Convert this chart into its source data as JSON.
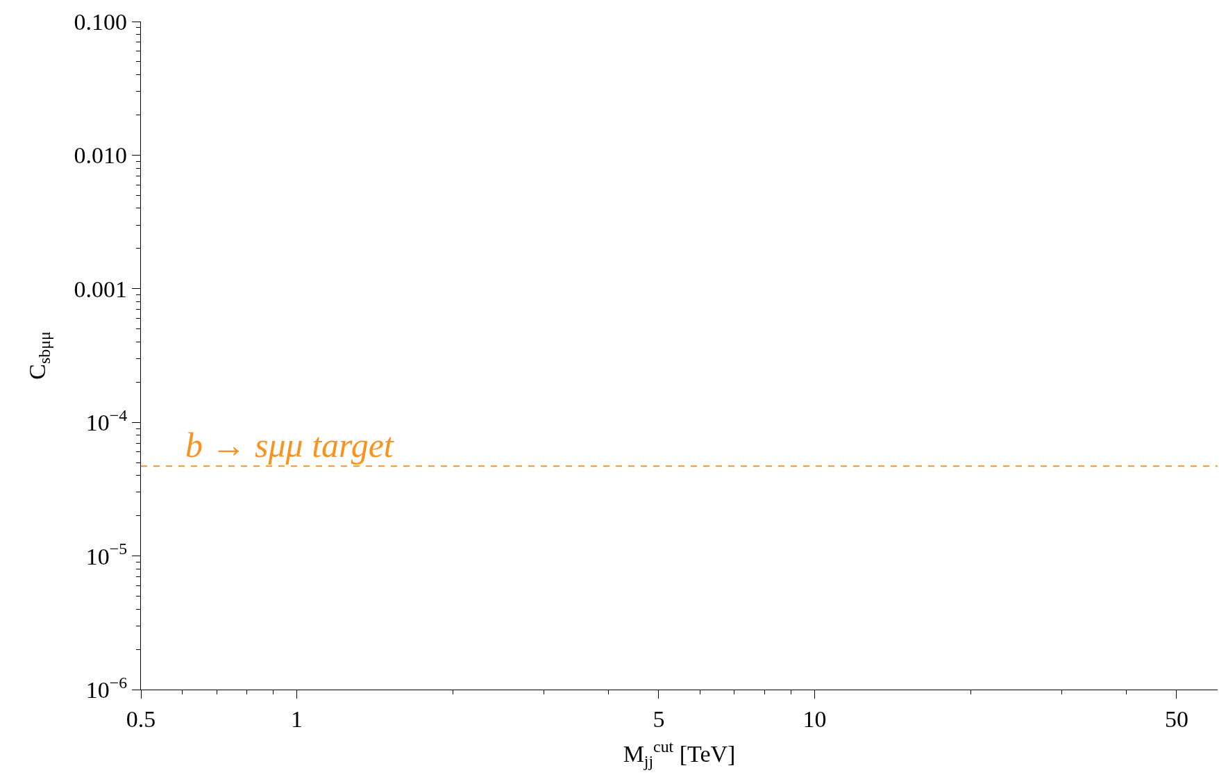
{
  "chart_data": {
    "type": "line",
    "xlabel": "M$_{jj}$$^{cut}$ [TeV]",
    "ylabel": "C$_{sbμμ}$",
    "log": "xy",
    "xlim": [
      0.5,
      60
    ],
    "ylim": [
      1e-06,
      0.1
    ],
    "xticks": [
      0.5,
      {
        "value": 0.6,
        "label": null
      },
      {
        "value": 0.7,
        "label": null
      },
      {
        "value": 0.8,
        "label": null
      },
      {
        "value": 0.9,
        "label": null
      },
      1,
      {
        "value": 2,
        "label": null
      },
      {
        "value": 3,
        "label": null
      },
      {
        "value": 4,
        "label": null
      },
      5,
      {
        "value": 6,
        "label": null
      },
      {
        "value": 7,
        "label": null
      },
      {
        "value": 8,
        "label": null
      },
      {
        "value": 9,
        "label": null
      },
      10,
      {
        "value": 20,
        "label": null
      },
      {
        "value": 30,
        "label": null
      },
      {
        "value": 40,
        "label": null
      },
      50
    ],
    "yticks": [
      {
        "value": 1e-06,
        "label": "10$^{−6}$"
      },
      {
        "value": 2e-06,
        "label": null
      },
      {
        "value": 3e-06,
        "label": null
      },
      {
        "value": 4e-06,
        "label": null
      },
      {
        "value": 5e-06,
        "label": null
      },
      {
        "value": 6e-06,
        "label": null
      },
      {
        "value": 7e-06,
        "label": null
      },
      {
        "value": 8e-06,
        "label": null
      },
      {
        "value": 9e-06,
        "label": null
      },
      {
        "value": 1e-05,
        "label": "10$^{−5}$"
      },
      {
        "value": 2e-05,
        "label": null
      },
      {
        "value": 3e-05,
        "label": null
      },
      {
        "value": 4e-05,
        "label": null
      },
      {
        "value": 5e-05,
        "label": null
      },
      {
        "value": 6e-05,
        "label": null
      },
      {
        "value": 7e-05,
        "label": null
      },
      {
        "value": 8e-05,
        "label": null
      },
      {
        "value": 9e-05,
        "label": null
      },
      {
        "value": 0.0001,
        "label": "10$^{−4}$"
      },
      {
        "value": 0.0002,
        "label": null
      },
      {
        "value": 0.0003,
        "label": null
      },
      {
        "value": 0.0004,
        "label": null
      },
      {
        "value": 0.0005,
        "label": null
      },
      {
        "value": 0.0006,
        "label": null
      },
      {
        "value": 0.0007,
        "label": null
      },
      {
        "value": 0.0008,
        "label": null
      },
      {
        "value": 0.0009,
        "label": null
      },
      {
        "value": 0.001,
        "label": "0.001"
      },
      {
        "value": 0.002,
        "label": null
      },
      {
        "value": 0.003,
        "label": null
      },
      {
        "value": 0.004,
        "label": null
      },
      {
        "value": 0.005,
        "label": null
      },
      {
        "value": 0.006,
        "label": null
      },
      {
        "value": 0.007,
        "label": null
      },
      {
        "value": 0.008,
        "label": null
      },
      {
        "value": 0.009,
        "label": null
      },
      {
        "value": 0.01,
        "label": "0.010"
      },
      {
        "value": 0.02,
        "label": null
      },
      {
        "value": 0.03,
        "label": null
      },
      {
        "value": 0.04,
        "label": null
      },
      {
        "value": 0.05,
        "label": null
      },
      {
        "value": 0.06,
        "label": null
      },
      {
        "value": 0.07,
        "label": null
      },
      {
        "value": 0.08,
        "label": null
      },
      {
        "value": 0.09,
        "label": null
      },
      {
        "value": 0.1,
        "label": "0.100"
      }
    ],
    "ref_lines": [
      {
        "axis": "y",
        "value": 4.7e-05,
        "label": "b → sμμ target",
        "color": "#f7931e",
        "line_style": "dashed"
      }
    ]
  }
}
